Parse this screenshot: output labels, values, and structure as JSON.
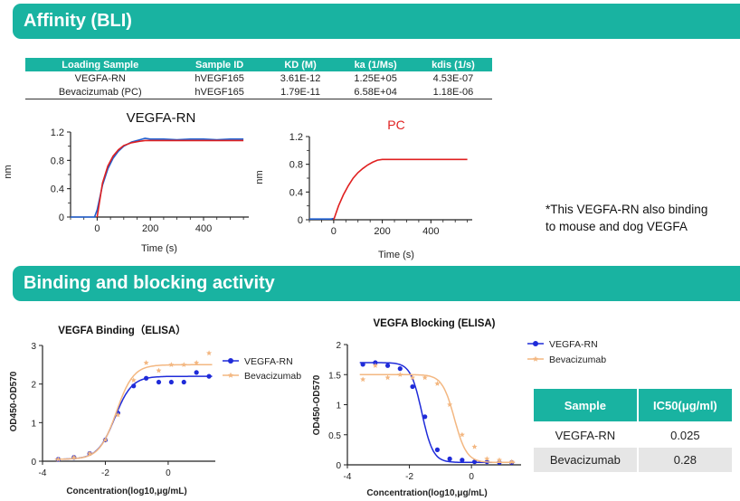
{
  "colors": {
    "teal": "#19b3a1",
    "blue": "#1f2bd9",
    "orange": "#f3b781",
    "red": "#e02020"
  },
  "header": {
    "affinity_title": "Affinity (BLI)",
    "binding_title": "Binding and blocking activity"
  },
  "kinetics_table": {
    "headers": [
      "Loading Sample",
      "Sample ID",
      "KD (M)",
      "ka (1/Ms)",
      "kdis (1/s)"
    ],
    "rows": [
      [
        "VEGFA-RN",
        "hVEGF165",
        "3.61E-12",
        "1.25E+05",
        "4.53E-07"
      ],
      [
        "Bevacizumab (PC)",
        "hVEGF165",
        "1.79E-11",
        "6.58E+04",
        "1.18E-06"
      ]
    ]
  },
  "note": {
    "line1": "*This VEGFA-RN also binding",
    "line2": "to mouse and dog VEGFA"
  },
  "ic50_table": {
    "headers": [
      "Sample",
      "IC50(μg/ml)"
    ],
    "rows": [
      [
        "VEGFA-RN",
        "0.025"
      ],
      [
        "Bevacizumab",
        "0.28"
      ]
    ]
  },
  "chart_data": [
    {
      "type": "line",
      "title": "VEGFA-RN",
      "xlabel": "Time (s)",
      "ylabel": "nm",
      "xlim": [
        -100,
        570
      ],
      "ylim": [
        0,
        1.2
      ],
      "xticks": [
        0,
        200,
        400
      ],
      "yticks": [
        0,
        0.4,
        0.8,
        1.2
      ],
      "series": [
        {
          "color": "#1f5fd0",
          "x": [
            -100,
            -50,
            -10,
            0,
            20,
            40,
            60,
            80,
            100,
            130,
            160,
            180,
            200,
            250,
            300,
            350,
            400,
            450,
            500,
            550
          ],
          "y": [
            0.0,
            0.0,
            0.0,
            0.1,
            0.45,
            0.68,
            0.83,
            0.93,
            1.0,
            1.06,
            1.09,
            1.11,
            1.1,
            1.1,
            1.09,
            1.1,
            1.1,
            1.09,
            1.1,
            1.1
          ]
        },
        {
          "color": "#e02020",
          "x": [
            0,
            20,
            40,
            60,
            80,
            100,
            130,
            160,
            180,
            200,
            300,
            400,
            500,
            550
          ],
          "y": [
            0.0,
            0.48,
            0.72,
            0.86,
            0.95,
            1.01,
            1.05,
            1.07,
            1.08,
            1.08,
            1.08,
            1.08,
            1.08,
            1.08
          ]
        }
      ]
    },
    {
      "type": "line",
      "title": "PC",
      "xlabel": "Time (s)",
      "ylabel": "nm",
      "xlim": [
        -100,
        570
      ],
      "ylim": [
        0,
        1.2
      ],
      "xticks": [
        0,
        200,
        400
      ],
      "yticks": [
        0,
        0.4,
        0.8,
        1.2
      ],
      "series": [
        {
          "color": "#1f5fd0",
          "x": [
            -100,
            -50,
            -10,
            0
          ],
          "y": [
            0.01,
            0.01,
            0.01,
            0.02
          ]
        },
        {
          "color": "#e02020",
          "x": [
            0,
            20,
            40,
            60,
            80,
            100,
            120,
            140,
            160,
            180,
            200,
            300,
            400,
            500,
            550
          ],
          "y": [
            0.0,
            0.2,
            0.36,
            0.49,
            0.6,
            0.68,
            0.74,
            0.79,
            0.83,
            0.86,
            0.87,
            0.87,
            0.87,
            0.87,
            0.87
          ]
        }
      ]
    },
    {
      "type": "scatter",
      "title": "VEGFA Binding（ELISA）",
      "xlabel": "Concentration(log10,μg/mL)",
      "ylabel": "OD450-OD570",
      "xlim": [
        -4,
        1.5
      ],
      "ylim": [
        0,
        3
      ],
      "xticks": [
        -4,
        -2,
        0,
        2
      ],
      "yticks": [
        0,
        1,
        2,
        3
      ],
      "legend": "top-right",
      "series": [
        {
          "name": "VEGFA-RN",
          "color": "#1f2bd9",
          "marker": "circle",
          "x": [
            -3.5,
            -3.0,
            -2.5,
            -2.0,
            -1.6,
            -1.1,
            -0.7,
            -0.3,
            0.1,
            0.5,
            0.9,
            1.3
          ],
          "y": [
            0.05,
            0.1,
            0.2,
            0.55,
            1.25,
            1.95,
            2.15,
            2.05,
            2.05,
            2.05,
            2.3,
            2.2
          ],
          "fit": {
            "bottom": 0.05,
            "top": 2.2,
            "ec50": -1.7,
            "hill": 1.6
          }
        },
        {
          "name": "Bevacizumab",
          "color": "#f3b781",
          "marker": "star",
          "x": [
            -3.5,
            -3.0,
            -2.5,
            -2.0,
            -1.6,
            -1.1,
            -0.7,
            -0.3,
            0.1,
            0.5,
            0.9,
            1.3
          ],
          "y": [
            0.05,
            0.1,
            0.2,
            0.55,
            1.2,
            2.1,
            2.55,
            2.35,
            2.5,
            2.5,
            2.55,
            2.8
          ],
          "fit": {
            "bottom": 0.05,
            "top": 2.5,
            "ec50": -1.65,
            "hill": 1.6
          }
        }
      ]
    },
    {
      "type": "scatter",
      "title": "VEGFA Blocking (ELISA)",
      "xlabel": "Concentration(log10,μg/mL)",
      "ylabel": "OD450-OD570",
      "xlim": [
        -4,
        1.6
      ],
      "ylim": [
        0,
        2.0
      ],
      "xticks": [
        -4,
        -2,
        0,
        2
      ],
      "yticks": [
        0,
        0.5,
        1.0,
        1.5,
        2.0
      ],
      "legend": "right",
      "series": [
        {
          "name": "VEGFA-RN",
          "color": "#1f2bd9",
          "marker": "circle",
          "x": [
            -3.5,
            -3.1,
            -2.7,
            -2.3,
            -1.9,
            -1.5,
            -1.1,
            -0.7,
            -0.3,
            0.1,
            0.5,
            0.9,
            1.3
          ],
          "y": [
            1.67,
            1.7,
            1.65,
            1.6,
            1.3,
            0.8,
            0.25,
            0.1,
            0.08,
            0.05,
            0.05,
            0.04,
            0.04
          ],
          "fit": {
            "bottom": 0.04,
            "top": 1.7,
            "ec50": -1.6,
            "hill": 2.4
          }
        },
        {
          "name": "Bevacizumab",
          "color": "#f3b781",
          "marker": "star",
          "x": [
            -3.5,
            -3.1,
            -2.7,
            -2.3,
            -1.9,
            -1.5,
            -1.1,
            -0.7,
            -0.3,
            0.1,
            0.5,
            0.9,
            1.3
          ],
          "y": [
            1.42,
            1.65,
            1.45,
            1.5,
            1.45,
            1.45,
            1.35,
            1.0,
            0.5,
            0.3,
            0.1,
            0.08,
            0.05
          ],
          "fit": {
            "bottom": 0.04,
            "top": 1.5,
            "ec50": -0.55,
            "hill": 2.2
          }
        }
      ]
    }
  ]
}
